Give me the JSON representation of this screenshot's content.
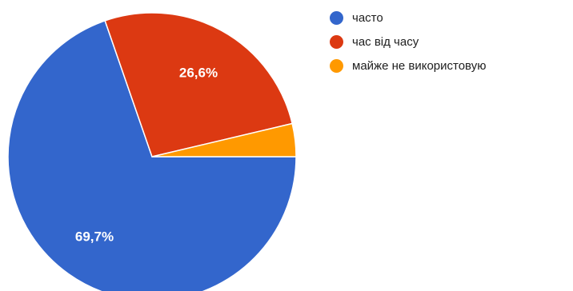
{
  "chart_data": {
    "type": "pie",
    "categories": [
      "часто",
      "час від часу",
      "майже не використовую"
    ],
    "values": [
      69.7,
      26.6,
      3.7
    ],
    "data_labels": [
      "69,7%",
      "26,6%",
      ""
    ],
    "colors": [
      "#3366cc",
      "#dc3912",
      "#ff9900"
    ],
    "legend_position": "right"
  }
}
